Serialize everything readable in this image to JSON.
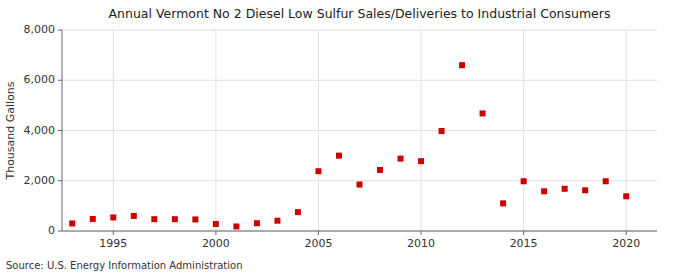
{
  "chart_data": {
    "type": "scatter",
    "title": "Annual Vermont No 2 Diesel Low Sulfur Sales/Deliveries to Industrial Consumers",
    "y_label": "Thousand Gallons",
    "annotations": [
      "Source: U.S. Energy Information Administration"
    ],
    "x": [
      1993,
      1994,
      1995,
      1996,
      1997,
      1998,
      1999,
      2000,
      2001,
      2002,
      2003,
      2004,
      2005,
      2006,
      2007,
      2008,
      2009,
      2010,
      2011,
      2012,
      2013,
      2014,
      2015,
      2016,
      2017,
      2018,
      2019,
      2020
    ],
    "values": [
      300,
      480,
      540,
      600,
      470,
      470,
      460,
      280,
      180,
      310,
      410,
      750,
      2380,
      3000,
      1850,
      2430,
      2880,
      2780,
      3980,
      6600,
      4680,
      1100,
      1980,
      1580,
      1680,
      1620,
      1980,
      1380
    ],
    "color": "#cc0000",
    "marker": "square",
    "xlim": [
      1992.5,
      2021.5
    ],
    "xticks": [
      1995,
      2000,
      2005,
      2010,
      2015,
      2020
    ],
    "ylim": [
      0,
      8000
    ],
    "yticks": [
      0,
      {
        "value": 2000,
        "label": "2,000"
      },
      {
        "value": 4000,
        "label": "4,000"
      },
      {
        "value": 6000,
        "label": "6,000"
      },
      {
        "value": 8000,
        "label": "8,000"
      }
    ],
    "grid": true
  }
}
